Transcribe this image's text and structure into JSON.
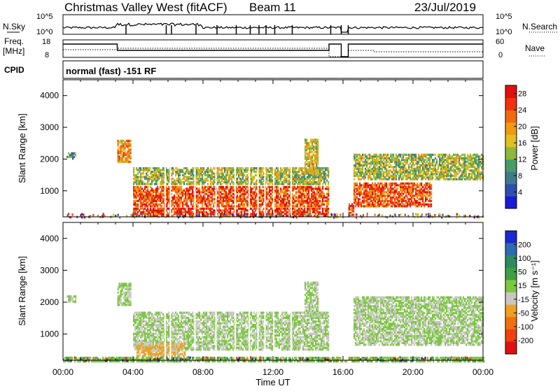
{
  "header": {
    "site": "Christmas Valley West (fitACF)",
    "beam": "Beam 11",
    "date": "23/Jul/2019"
  },
  "strips": {
    "nsky_label": "N.Sky",
    "nsky_ticks": [
      "10^5",
      "10^0"
    ],
    "nsearch_label": "N.Search",
    "nsearch_ticks": [
      "10^5",
      "10^0"
    ],
    "freq_label_1": "Freq.",
    "freq_label_2": "[MHz]",
    "freq_ticks": [
      "18",
      "8"
    ],
    "nave_label": "Nave",
    "nave_ticks": [
      "60",
      "0"
    ],
    "cpid_label": "CPID",
    "cpid_value": "normal (fast) -151 RF"
  },
  "axes": {
    "ylabel": "Slant Range [km]",
    "xlabel": "Time UT",
    "x_ticks": [
      "00:00",
      "04:00",
      "08:00",
      "12:00",
      "16:00",
      "20:00",
      "00:00"
    ],
    "y_ticks": [
      "1000",
      "2000",
      "3000",
      "4000"
    ]
  },
  "power_colorbar": {
    "label": "Power [dB]",
    "ticks": [
      "4",
      "8",
      "12",
      "16",
      "20",
      "24",
      "28"
    ],
    "colors": [
      "#1a1ad6",
      "#2e4fb0",
      "#3f7a8a",
      "#4a9a6a",
      "#8db83c",
      "#e0c020",
      "#f09a10",
      "#f06a10",
      "#f03010",
      "#e01010"
    ]
  },
  "velocity_colorbar": {
    "label": "Velocity [m s⁻¹]",
    "ticks": [
      "200",
      "100",
      "50",
      "15",
      "-15",
      "-50",
      "-100",
      "-200"
    ],
    "colors": [
      "#1a2ad0",
      "#2e6bb0",
      "#2e8a60",
      "#3ea040",
      "#7cc840",
      "#c8c8c0",
      "#f0a020",
      "#f07010",
      "#f04010",
      "#e01010"
    ]
  },
  "chart_data": {
    "type": "heatmap",
    "title": "Christmas Valley West (fitACF)",
    "xlabel": "Time UT",
    "ylabel": "Slant Range [km]",
    "xlim": [
      "00:00",
      "24:00"
    ],
    "ylim": [
      180,
      4500
    ],
    "panels": [
      {
        "name": "Power [dB]",
        "range": [
          0,
          30
        ],
        "regions": [
          {
            "t": [
              0.2,
              0.7
            ],
            "r": [
              2050,
              2250
            ],
            "value": 10
          },
          {
            "t": [
              3.1,
              3.9
            ],
            "r": [
              1950,
              2650
            ],
            "value": 20
          },
          {
            "t": [
              4.0,
              15.2
            ],
            "r": [
              1250,
              1750
            ],
            "value": 14
          },
          {
            "t": [
              4.0,
              15.2
            ],
            "r": [
              550,
              1200
            ],
            "value": 24
          },
          {
            "t": [
              4.0,
              15.2
            ],
            "r": [
              250,
              520
            ],
            "value": 26
          },
          {
            "t": [
              13.8,
              14.6
            ],
            "r": [
              1600,
              2700
            ],
            "value": 16
          },
          {
            "t": [
              16.6,
              24.0
            ],
            "r": [
              1400,
              2200
            ],
            "value": 14
          },
          {
            "t": [
              16.6,
              21.0
            ],
            "r": [
              550,
              1300
            ],
            "value": 24
          },
          {
            "t": [
              16.0,
              16.6
            ],
            "r": [
              280,
              650
            ],
            "value": 26
          }
        ]
      },
      {
        "name": "Velocity [m s⁻¹]",
        "range": [
          -200,
          200
        ],
        "regions": [
          {
            "t": [
              0.2,
              0.7
            ],
            "r": [
              2050,
              2250
            ],
            "value": 0
          },
          {
            "t": [
              3.1,
              3.9
            ],
            "r": [
              1950,
              2650
            ],
            "value": 0
          },
          {
            "t": [
              4.0,
              15.2
            ],
            "r": [
              550,
              1750
            ],
            "value": 0
          },
          {
            "t": [
              4.2,
              7.0
            ],
            "r": [
              350,
              750
            ],
            "value": -45
          },
          {
            "t": [
              0.0,
              24.0
            ],
            "r": [
              180,
              320
            ],
            "value": 30
          },
          {
            "t": [
              13.8,
              14.6
            ],
            "r": [
              1600,
              2700
            ],
            "value": 0
          },
          {
            "t": [
              16.6,
              24.0
            ],
            "r": [
              700,
              2200
            ],
            "value": 0
          }
        ]
      }
    ]
  }
}
